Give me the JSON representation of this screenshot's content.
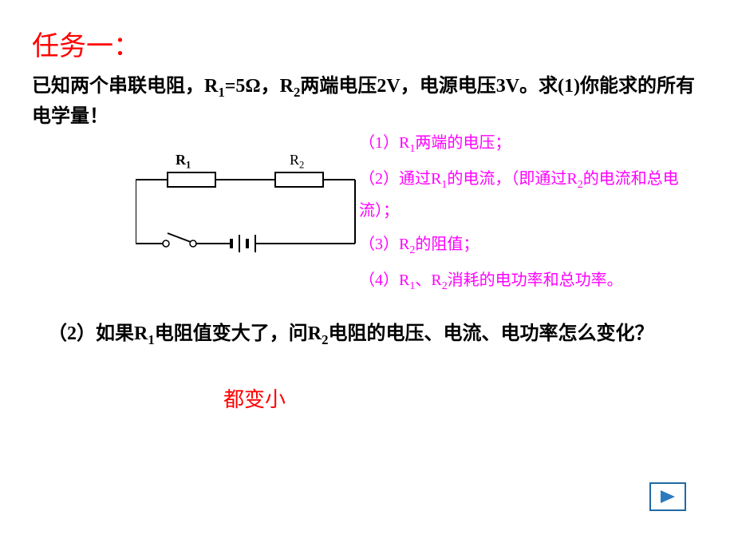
{
  "title": "任务一：",
  "problem": "已知两个串联电阻，R<sub>1</sub>=5Ω，R<sub>2</sub>两端电压2V，电源电压3V。求(1)你能求的所有电学量！",
  "circuit": {
    "r1_label": "R",
    "r1_sub": "1",
    "r2_label": "R",
    "r2_sub": "2",
    "stroke_color": "#000000",
    "stroke_width": 2,
    "r1_bold": true
  },
  "hints": [
    "（1）R<sub>1</sub>两端的电压；",
    "（2）通过R<sub>1</sub>的电流，（即通过R<sub>2</sub>的电流和总电流）；",
    "（3）R<sub>2</sub>的阻值；",
    "（4）R<sub>1</sub>、R<sub>2</sub>消耗的电功率和总功率。"
  ],
  "question2": "（2）如果R<sub>1</sub>电阻值变大了，问R<sub>2</sub>电阻的电压、电流、电功率怎么变化？",
  "answer": "都变小",
  "colors": {
    "title": "#ff0000",
    "problem": "#000000",
    "hints": "#ff00ff",
    "answer": "#ff0000",
    "nav_border": "#1f6aa5",
    "nav_fill": "#2b7bbd",
    "background": "#ffffff"
  },
  "fontsizes": {
    "title": 34,
    "problem": 24,
    "hints": 20,
    "question2": 24,
    "answer": 26,
    "r_label": 18
  }
}
